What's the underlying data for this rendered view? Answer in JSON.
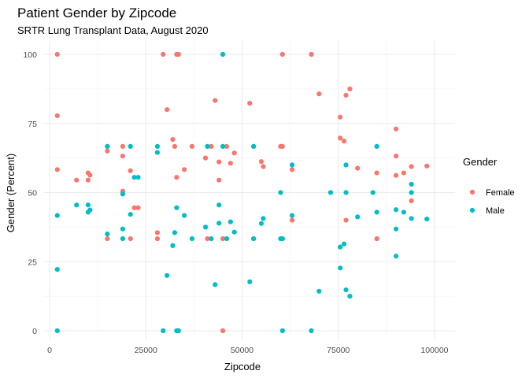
{
  "chart_data": {
    "type": "scatter",
    "title": "Patient Gender by Zipcode",
    "subtitle": "SRTR Lung Transplant Data, August 2020",
    "xlabel": "Zipcode",
    "ylabel": "Gender (Percent)",
    "xlim": [
      0,
      102000
    ],
    "ylim": [
      0,
      100
    ],
    "xticks": [
      0,
      25000,
      50000,
      75000,
      100000
    ],
    "yticks": [
      0,
      25,
      50,
      75,
      100
    ],
    "grid": true,
    "legend": {
      "title": "Gender",
      "position": "right"
    },
    "series": [
      {
        "name": "Female",
        "color": "#F8766D",
        "points": [
          [
            2000,
            100
          ],
          [
            2000,
            77.8
          ],
          [
            2000,
            58.3
          ],
          [
            7000,
            54.5
          ],
          [
            10000,
            57.1
          ],
          [
            10000,
            54.5
          ],
          [
            10500,
            56.3
          ],
          [
            15000,
            66.7
          ],
          [
            15000,
            65
          ],
          [
            15000,
            33.3
          ],
          [
            19000,
            66.7
          ],
          [
            19000,
            63.2
          ],
          [
            19000,
            50.5
          ],
          [
            19000,
            49.5
          ],
          [
            21000,
            57.9
          ],
          [
            21000,
            33.3
          ],
          [
            22000,
            44.5
          ],
          [
            23000,
            44.5
          ],
          [
            28000,
            35.5
          ],
          [
            28000,
            33.3
          ],
          [
            29500,
            100
          ],
          [
            30500,
            80
          ],
          [
            32000,
            69.2
          ],
          [
            32500,
            66.7
          ],
          [
            33000,
            100
          ],
          [
            33500,
            100
          ],
          [
            33000,
            55.5
          ],
          [
            35000,
            58.3
          ],
          [
            37000,
            66.7
          ],
          [
            40500,
            62.5
          ],
          [
            41000,
            33.3
          ],
          [
            42000,
            66.7
          ],
          [
            43000,
            83.3
          ],
          [
            44000,
            61.1
          ],
          [
            44000,
            54.5
          ],
          [
            45000,
            0
          ],
          [
            45000,
            33.3
          ],
          [
            46000,
            66.7
          ],
          [
            47000,
            60.6
          ],
          [
            48000,
            64.3
          ],
          [
            52000,
            82.3
          ],
          [
            53000,
            66.7
          ],
          [
            53000,
            33.3
          ],
          [
            55000,
            61.2
          ],
          [
            55500,
            59.4
          ],
          [
            60000,
            66.7
          ],
          [
            60500,
            66.7
          ],
          [
            60500,
            100
          ],
          [
            63000,
            58.3
          ],
          [
            63000,
            40
          ],
          [
            68000,
            100
          ],
          [
            70000,
            85.7
          ],
          [
            75500,
            77.3
          ],
          [
            75500,
            69.7
          ],
          [
            76500,
            68.6
          ],
          [
            77000,
            85.2
          ],
          [
            77000,
            40
          ],
          [
            78000,
            87.5
          ],
          [
            80000,
            58.8
          ],
          [
            85000,
            57.1
          ],
          [
            85000,
            33.3
          ],
          [
            90000,
            73
          ],
          [
            90000,
            63.2
          ],
          [
            90000,
            56.2
          ],
          [
            92000,
            57.1
          ],
          [
            94000,
            59.4
          ],
          [
            94000,
            47
          ],
          [
            98000,
            59.6
          ]
        ]
      },
      {
        "name": "Male",
        "color": "#00BFC4",
        "points": [
          [
            2000,
            41.7
          ],
          [
            2000,
            22.2
          ],
          [
            2000,
            0
          ],
          [
            7000,
            45.5
          ],
          [
            10000,
            45.5
          ],
          [
            10000,
            42.9
          ],
          [
            10500,
            43.7
          ],
          [
            15000,
            66.7
          ],
          [
            15000,
            35
          ],
          [
            19000,
            49.5
          ],
          [
            19000,
            36.8
          ],
          [
            19000,
            33.3
          ],
          [
            21000,
            66.7
          ],
          [
            21000,
            42.1
          ],
          [
            22000,
            55.5
          ],
          [
            23000,
            55.5
          ],
          [
            28000,
            66.7
          ],
          [
            28000,
            64.5
          ],
          [
            29500,
            0
          ],
          [
            30500,
            20
          ],
          [
            32000,
            30.8
          ],
          [
            32500,
            35.5
          ],
          [
            33000,
            0
          ],
          [
            33500,
            0
          ],
          [
            33000,
            44.5
          ],
          [
            35000,
            41.7
          ],
          [
            37000,
            33.3
          ],
          [
            40500,
            37.5
          ],
          [
            41000,
            66.7
          ],
          [
            42000,
            33.3
          ],
          [
            43000,
            16.7
          ],
          [
            44000,
            38.9
          ],
          [
            44000,
            45.5
          ],
          [
            45000,
            100
          ],
          [
            45000,
            66.7
          ],
          [
            46000,
            33.3
          ],
          [
            47000,
            39.4
          ],
          [
            48000,
            35.7
          ],
          [
            52000,
            17.7
          ],
          [
            53000,
            66.7
          ],
          [
            53000,
            33.3
          ],
          [
            55000,
            38.8
          ],
          [
            55500,
            40.6
          ],
          [
            60000,
            33.3
          ],
          [
            60500,
            33.3
          ],
          [
            60500,
            0
          ],
          [
            63000,
            41.7
          ],
          [
            63000,
            60
          ],
          [
            68000,
            0
          ],
          [
            70000,
            14.3
          ],
          [
            75500,
            22.7
          ],
          [
            75500,
            30.3
          ],
          [
            76500,
            31.4
          ],
          [
            77000,
            14.8
          ],
          [
            77000,
            60
          ],
          [
            78000,
            12.5
          ],
          [
            80000,
            41.2
          ],
          [
            85000,
            42.9
          ],
          [
            85000,
            66.7
          ],
          [
            90000,
            27
          ],
          [
            90000,
            36.8
          ],
          [
            90000,
            43.8
          ],
          [
            92000,
            42.9
          ],
          [
            94000,
            40.6
          ],
          [
            94000,
            53
          ],
          [
            98000,
            40.4
          ],
          [
            60000,
            50
          ],
          [
            73000,
            50
          ],
          [
            77000,
            50
          ],
          [
            84000,
            50
          ],
          [
            94000,
            50
          ]
        ]
      }
    ]
  }
}
